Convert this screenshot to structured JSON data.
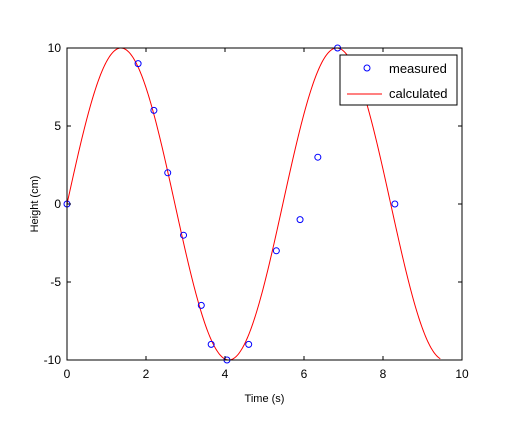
{
  "chart_data": {
    "type": "line",
    "title": "",
    "xlabel": "Time (s)",
    "ylabel": "Height (cm)",
    "xlim": [
      0,
      10
    ],
    "ylim": [
      -10,
      10
    ],
    "xticks": [
      0,
      2,
      4,
      6,
      8,
      10
    ],
    "yticks": [
      -10,
      -5,
      0,
      5,
      10
    ],
    "xtick_labels": [
      "0",
      "2",
      "4",
      "6",
      "8",
      "10"
    ],
    "ytick_labels": [
      "-10",
      "-5",
      "0",
      "5",
      "10"
    ],
    "grid": false,
    "legend_position": "top-right",
    "series": [
      {
        "name": "measured",
        "kind": "scatter",
        "marker": "circle-open",
        "color": "#0000ff",
        "x": [
          0.0,
          1.8,
          2.2,
          2.55,
          2.95,
          3.4,
          3.65,
          4.05,
          4.6,
          5.3,
          5.9,
          6.35,
          6.85,
          8.3
        ],
        "y": [
          0,
          9,
          6,
          2,
          -2,
          -6.5,
          -9,
          -10,
          -9,
          -3,
          -1,
          3,
          10,
          0
        ]
      },
      {
        "name": "calculated",
        "kind": "line",
        "color": "#ff0000",
        "function": {
          "form": "A*sin(w*t)",
          "A": 10,
          "w": 1.15
        },
        "x_range": [
          0,
          9.45
        ]
      }
    ]
  }
}
